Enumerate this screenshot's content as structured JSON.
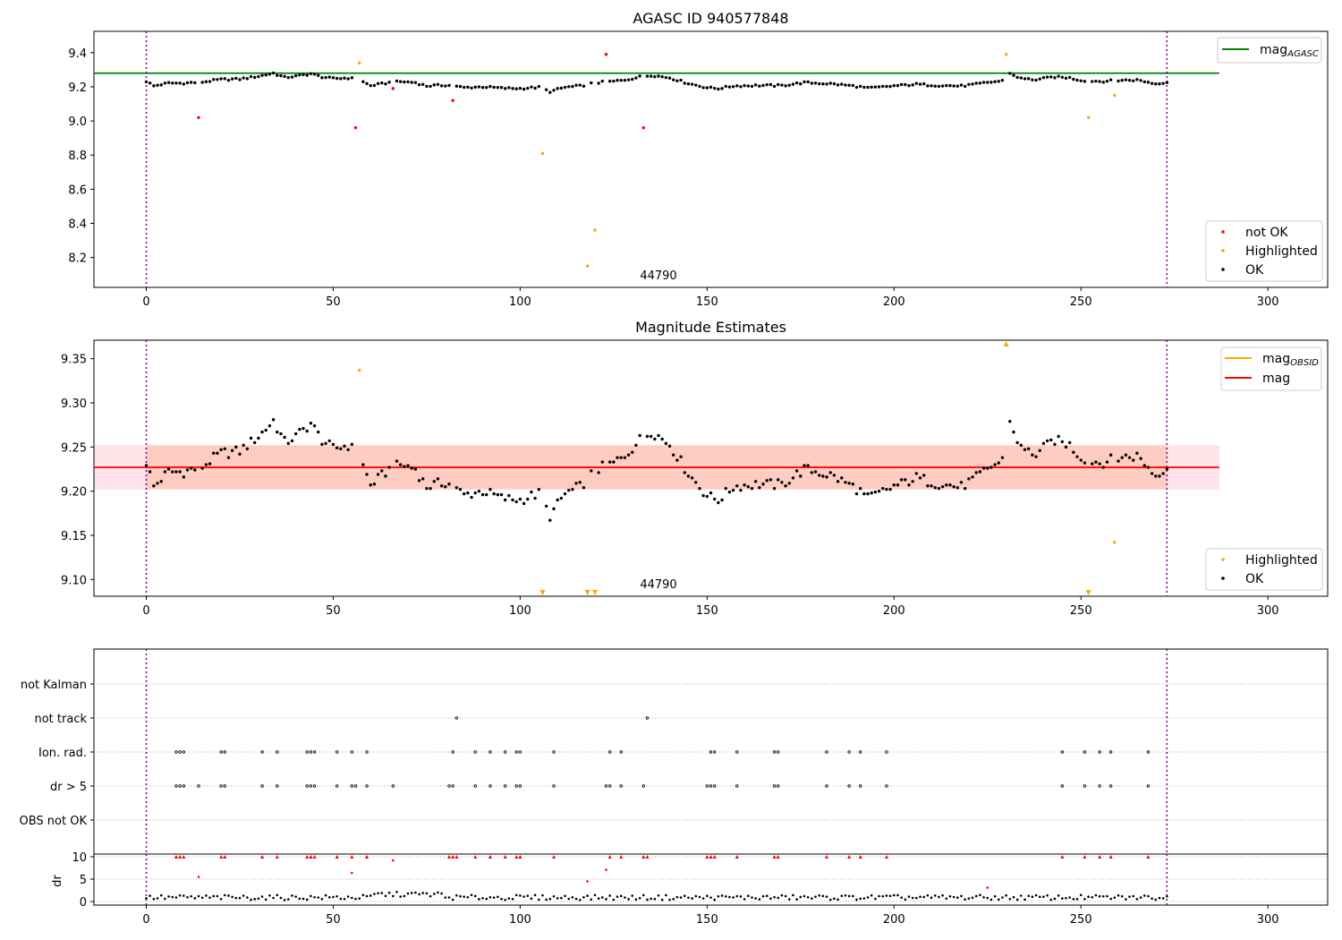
{
  "chart_data": [
    {
      "id": "top",
      "type": "scatter",
      "title": "AGASC ID 940577848",
      "xlim": [
        -14,
        316
      ],
      "ylim": [
        8.025,
        9.525
      ],
      "xticks": [
        "0",
        "50",
        "100",
        "150",
        "200",
        "250",
        "300"
      ],
      "yticks": [
        "8.2",
        "8.4",
        "8.6",
        "8.8",
        "9.0",
        "9.2",
        "9.4"
      ],
      "annotation": "44790",
      "vlines": [
        0,
        273
      ],
      "hline": {
        "y": 9.28,
        "x_range": [
          -14,
          287
        ],
        "color": "#008000"
      },
      "legend_upper": [
        {
          "label": "mag",
          "sub": "AGASC",
          "color": "#008000",
          "kind": "line"
        }
      ],
      "legend_lower": [
        {
          "label": "not OK",
          "color": "#ff0000"
        },
        {
          "label": "Highlighted",
          "color": "#ffa500"
        },
        {
          "label": "OK",
          "color": "#000000"
        }
      ],
      "series": [
        {
          "name": "not OK",
          "color": "#ff0000",
          "points": [
            [
              14,
              9.02
            ],
            [
              56,
              8.96
            ],
            [
              66,
              9.19
            ],
            [
              82,
              9.12
            ],
            [
              123,
              9.39
            ],
            [
              133,
              8.96
            ]
          ]
        },
        {
          "name": "Highlighted",
          "color": "#ffa500",
          "points": [
            [
              57,
              9.34
            ],
            [
              106,
              8.81
            ],
            [
              118,
              8.15
            ],
            [
              120,
              8.36
            ],
            [
              230,
              9.39
            ],
            [
              252,
              9.02
            ],
            [
              259,
              9.15
            ]
          ]
        },
        {
          "name": "OK",
          "color": "#000000",
          "points": []
        }
      ]
    },
    {
      "id": "mid",
      "type": "scatter",
      "title": "Magnitude Estimates",
      "xlim": [
        -14,
        316
      ],
      "ylim": [
        9.081,
        9.371
      ],
      "xticks": [
        "0",
        "50",
        "100",
        "150",
        "200",
        "250",
        "300"
      ],
      "yticks": [
        "9.10",
        "9.15",
        "9.20",
        "9.25",
        "9.30",
        "9.35"
      ],
      "annotation": "44790",
      "vlines": [
        0,
        273
      ],
      "mag_line": {
        "y": 9.227,
        "x_range": [
          -14,
          287
        ],
        "color": "#ff0000"
      },
      "band": {
        "y_range": [
          9.202,
          9.252
        ],
        "x_range": [
          -14,
          287
        ]
      },
      "band_inner": {
        "y_range": [
          9.202,
          9.252
        ],
        "x_range": [
          0,
          273
        ]
      },
      "legend_upper": [
        {
          "label": "mag",
          "sub": "OBSID",
          "color": "#ffa500",
          "kind": "line"
        },
        {
          "label": "mag",
          "sub": "",
          "color": "#ff0000",
          "kind": "line"
        }
      ],
      "legend_lower": [
        {
          "label": "Highlighted",
          "color": "#ffa500"
        },
        {
          "label": "OK",
          "color": "#000000"
        }
      ],
      "highlighted": [
        [
          57,
          9.337
        ],
        [
          259,
          9.142
        ]
      ],
      "offscale_down": [
        106,
        118,
        120,
        252
      ],
      "offscale_up": [
        230
      ],
      "series": [
        {
          "name": "OK",
          "color": "#000000",
          "points": []
        }
      ]
    },
    {
      "id": "flags",
      "type": "scatter",
      "xlim": [
        -14,
        316
      ],
      "categories": [
        "not Kalman",
        "not track",
        "Ion. rad.",
        "dr > 5",
        "OBS not OK"
      ],
      "vlines": [
        0,
        273
      ],
      "not_track": [
        83,
        134
      ],
      "ion_rad": [
        8,
        9,
        10,
        20,
        21,
        31,
        35,
        43,
        44,
        45,
        51,
        55,
        59,
        82,
        88,
        92,
        96,
        99,
        100,
        109,
        124,
        127,
        151,
        152,
        158,
        168,
        169,
        182,
        188,
        191,
        198,
        245,
        251,
        255,
        258,
        268
      ],
      "dr_gt_5": [
        8,
        9,
        10,
        14,
        20,
        21,
        31,
        35,
        43,
        44,
        45,
        51,
        55,
        56,
        59,
        66,
        81,
        82,
        88,
        92,
        96,
        99,
        100,
        109,
        123,
        124,
        127,
        133,
        150,
        151,
        152,
        158,
        168,
        169,
        182,
        188,
        191,
        198,
        245,
        251,
        255,
        258,
        268
      ]
    },
    {
      "id": "dr",
      "type": "scatter",
      "xlim": [
        -14,
        316
      ],
      "ylim": [
        -0.8,
        10.6
      ],
      "ylabel": "dr",
      "xticks": [
        "0",
        "50",
        "100",
        "150",
        "200",
        "250",
        "300"
      ],
      "yticks": [
        "0",
        "5",
        "10"
      ],
      "vlines": [
        0,
        273
      ],
      "red_points": [
        [
          14,
          5.5
        ],
        [
          55,
          6.4
        ],
        [
          66,
          9.2
        ],
        [
          118,
          4.5
        ],
        [
          123,
          7.1
        ],
        [
          225,
          3.1
        ]
      ],
      "red_at_limit": [
        8,
        9,
        10,
        20,
        21,
        31,
        35,
        43,
        44,
        45,
        51,
        55,
        59,
        81,
        82,
        83,
        88,
        92,
        96,
        99,
        100,
        109,
        124,
        127,
        133,
        134,
        150,
        151,
        152,
        158,
        168,
        169,
        182,
        188,
        191,
        198,
        245,
        251,
        255,
        258,
        268
      ],
      "series": [
        {
          "name": "OK",
          "color": "#000000",
          "points": []
        }
      ]
    }
  ]
}
